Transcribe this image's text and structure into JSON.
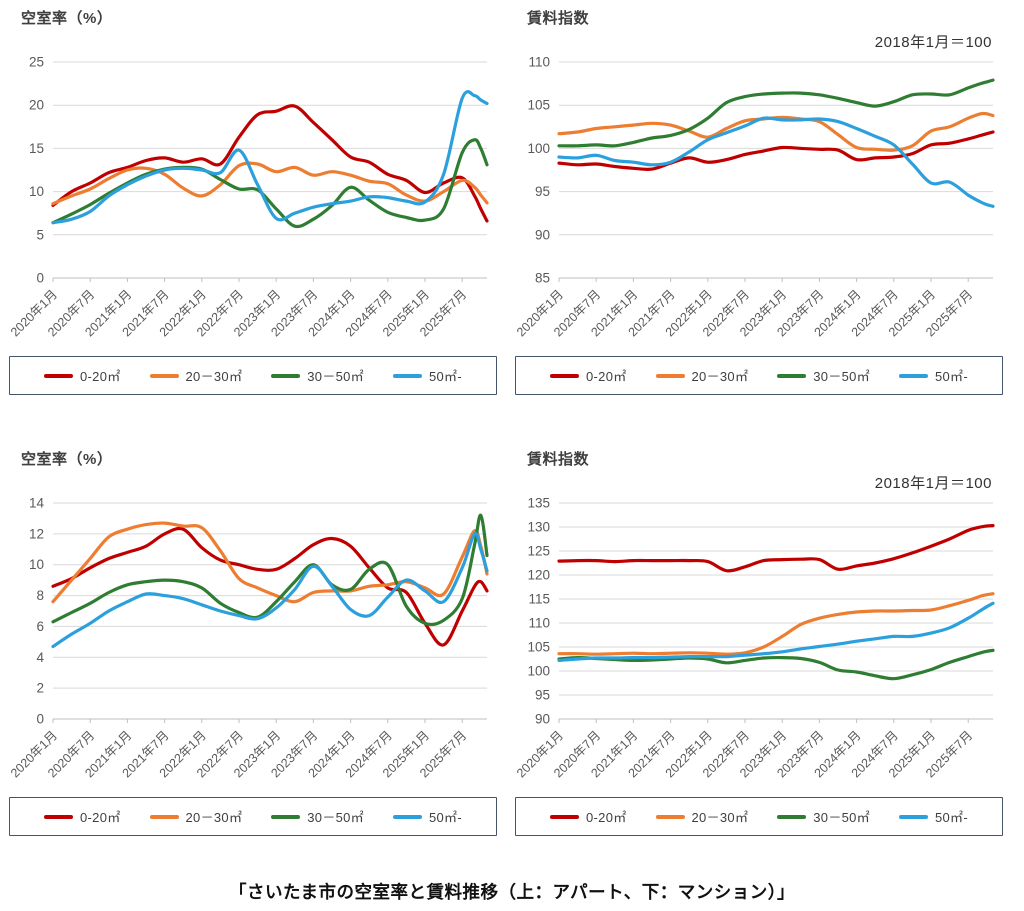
{
  "page": {
    "title": "「さいたま市の空室率と賃料推移（上：アパート、下：マンション）」"
  },
  "colors": {
    "red": "#c00000",
    "orange": "#ed7d31",
    "green": "#2e7d32",
    "blue": "#2ba0dc",
    "grid_line": "#d9d9d9",
    "axis_line": "#bfbfbf",
    "tick_text": "#595959",
    "header_text": "#3f3f3f",
    "legend_border": "#44546a"
  },
  "legend": {
    "items": [
      {
        "label": "0-20㎡",
        "color_key": "red"
      },
      {
        "label": "20－30㎡",
        "color_key": "orange"
      },
      {
        "label": "30－50㎡",
        "color_key": "green"
      },
      {
        "label": "50㎡-",
        "color_key": "blue"
      }
    ]
  },
  "x_axis": {
    "months_total": 70,
    "tick_months": [
      0,
      6,
      12,
      18,
      24,
      30,
      36,
      42,
      48,
      54,
      60,
      66
    ],
    "tick_labels": [
      "2020年1月",
      "2020年7月",
      "2021年1月",
      "2021年7月",
      "2022年1月",
      "2022年7月",
      "2023年1月",
      "2023年7月",
      "2024年1月",
      "2024年7月",
      "2025年1月",
      "2025年7月"
    ]
  },
  "sample_months": [
    0,
    3,
    6,
    9,
    12,
    15,
    18,
    21,
    24,
    27,
    30,
    33,
    36,
    39,
    42,
    45,
    48,
    51,
    54,
    57,
    60,
    63,
    66,
    68,
    69,
    70
  ],
  "chart_data": [
    {
      "type": "line",
      "id": "apartment-vacancy",
      "title": "空室率（%）",
      "subtitle": "",
      "ylim": [
        0,
        25
      ],
      "yticks": [
        0,
        5,
        10,
        15,
        20,
        25
      ],
      "grid": true,
      "legend_position": "bottom",
      "series": [
        {
          "name": "0-20㎡",
          "color_key": "red",
          "values": [
            8.4,
            10.0,
            11.0,
            12.2,
            12.8,
            13.6,
            13.9,
            13.4,
            13.8,
            13.2,
            16.3,
            18.9,
            19.3,
            19.9,
            18.0,
            16.0,
            14.0,
            13.4,
            12.0,
            11.3,
            9.9,
            11.0,
            11.6,
            9.5,
            8.0,
            6.6
          ]
        },
        {
          "name": "20－30㎡",
          "color_key": "orange",
          "values": [
            8.6,
            9.5,
            10.3,
            11.5,
            12.5,
            12.7,
            12.0,
            10.4,
            9.5,
            10.8,
            13.0,
            13.2,
            12.3,
            12.8,
            11.9,
            12.3,
            11.9,
            11.2,
            10.9,
            9.6,
            8.9,
            10.0,
            11.3,
            10.5,
            9.6,
            8.7
          ]
        },
        {
          "name": "30－50㎡",
          "color_key": "green",
          "values": [
            6.4,
            7.4,
            8.5,
            9.8,
            11.0,
            12.0,
            12.6,
            12.8,
            12.6,
            11.4,
            10.3,
            10.2,
            8.0,
            6.0,
            6.8,
            8.4,
            10.5,
            9.0,
            7.6,
            7.0,
            6.7,
            8.0,
            14.5,
            16.0,
            15.0,
            13.1
          ]
        },
        {
          "name": "50㎡-",
          "color_key": "blue",
          "values": [
            6.4,
            6.8,
            7.7,
            9.5,
            10.8,
            11.8,
            12.5,
            12.7,
            12.5,
            12.2,
            14.8,
            10.8,
            6.9,
            7.5,
            8.2,
            8.6,
            8.9,
            9.4,
            9.3,
            8.9,
            8.8,
            12.0,
            20.8,
            21.1,
            20.6,
            20.2
          ]
        }
      ]
    },
    {
      "type": "line",
      "id": "apartment-rent-index",
      "title": "賃料指数",
      "subtitle": "2018年1月＝100",
      "ylim": [
        85,
        110
      ],
      "yticks": [
        85,
        90,
        95,
        100,
        105,
        110
      ],
      "grid": true,
      "legend_position": "bottom",
      "series": [
        {
          "name": "0-20㎡",
          "color_key": "red",
          "values": [
            98.3,
            98.1,
            98.2,
            97.9,
            97.7,
            97.6,
            98.3,
            98.9,
            98.4,
            98.7,
            99.3,
            99.7,
            100.1,
            100.0,
            99.9,
            99.8,
            98.7,
            98.9,
            99.0,
            99.4,
            100.4,
            100.6,
            101.1,
            101.5,
            101.7,
            101.9
          ]
        },
        {
          "name": "20－30㎡",
          "color_key": "orange",
          "values": [
            101.7,
            101.9,
            102.3,
            102.5,
            102.7,
            102.9,
            102.7,
            102.0,
            101.3,
            102.3,
            103.2,
            103.4,
            103.6,
            103.4,
            103.1,
            101.6,
            100.1,
            99.9,
            99.8,
            100.3,
            102.0,
            102.5,
            103.5,
            104.0,
            104.0,
            103.8
          ]
        },
        {
          "name": "30－50㎡",
          "color_key": "green",
          "values": [
            100.3,
            100.3,
            100.4,
            100.3,
            100.7,
            101.2,
            101.5,
            102.2,
            103.5,
            105.3,
            106.0,
            106.3,
            106.4,
            106.4,
            106.2,
            105.8,
            105.3,
            104.9,
            105.4,
            106.2,
            106.3,
            106.2,
            107.0,
            107.5,
            107.7,
            107.9
          ]
        },
        {
          "name": "50㎡-",
          "color_key": "blue",
          "values": [
            99.0,
            98.9,
            99.2,
            98.6,
            98.4,
            98.1,
            98.4,
            99.6,
            101.0,
            101.8,
            102.6,
            103.5,
            103.3,
            103.3,
            103.4,
            103.1,
            102.3,
            101.4,
            100.4,
            98.2,
            96.0,
            96.1,
            94.6,
            93.8,
            93.5,
            93.3
          ]
        }
      ]
    },
    {
      "type": "line",
      "id": "mansion-vacancy",
      "title": "空室率（%）",
      "subtitle": "",
      "ylim": [
        0,
        14
      ],
      "yticks": [
        0,
        2,
        4,
        6,
        8,
        10,
        12,
        14
      ],
      "grid": true,
      "legend_position": "bottom",
      "series": [
        {
          "name": "0-20㎡",
          "color_key": "red",
          "values": [
            8.6,
            9.1,
            9.8,
            10.4,
            10.8,
            11.2,
            12.0,
            12.3,
            11.1,
            10.3,
            10.0,
            9.7,
            9.7,
            10.4,
            11.3,
            11.7,
            11.2,
            9.8,
            8.5,
            8.2,
            6.2,
            4.8,
            7.0,
            8.6,
            8.9,
            8.3
          ]
        },
        {
          "name": "20－30㎡",
          "color_key": "orange",
          "values": [
            7.6,
            9.0,
            10.4,
            11.8,
            12.3,
            12.6,
            12.7,
            12.5,
            12.4,
            10.9,
            9.1,
            8.5,
            8.0,
            7.6,
            8.2,
            8.3,
            8.3,
            8.6,
            8.7,
            8.9,
            8.5,
            8.1,
            10.5,
            12.2,
            11.2,
            9.4
          ]
        },
        {
          "name": "30－50㎡",
          "color_key": "green",
          "values": [
            6.3,
            6.9,
            7.5,
            8.2,
            8.7,
            8.9,
            9.0,
            8.9,
            8.5,
            7.5,
            6.9,
            6.6,
            7.6,
            8.9,
            10.0,
            8.7,
            8.4,
            9.7,
            10.0,
            7.3,
            6.2,
            6.4,
            7.8,
            11.3,
            13.2,
            10.6
          ]
        },
        {
          "name": "50㎡-",
          "color_key": "blue",
          "values": [
            4.7,
            5.5,
            6.2,
            7.0,
            7.6,
            8.1,
            8.0,
            7.8,
            7.4,
            7.0,
            6.7,
            6.5,
            7.2,
            8.4,
            9.9,
            8.6,
            7.1,
            6.7,
            7.9,
            9.0,
            8.3,
            7.6,
            9.8,
            12.0,
            11.0,
            9.6
          ]
        }
      ]
    },
    {
      "type": "line",
      "id": "mansion-rent-index",
      "title": "賃料指数",
      "subtitle": "2018年1月＝100",
      "ylim": [
        90,
        135
      ],
      "yticks": [
        90,
        95,
        100,
        105,
        110,
        115,
        120,
        125,
        130,
        135
      ],
      "grid": true,
      "legend_position": "bottom",
      "series": [
        {
          "name": "0-20㎡",
          "color_key": "red",
          "values": [
            122.9,
            123.0,
            123.0,
            122.8,
            123.0,
            123.0,
            123.0,
            123.0,
            122.8,
            120.9,
            121.7,
            123.0,
            123.2,
            123.3,
            123.2,
            121.2,
            121.9,
            122.5,
            123.4,
            124.6,
            126.0,
            127.5,
            129.3,
            130.0,
            130.2,
            130.3
          ]
        },
        {
          "name": "20－30㎡",
          "color_key": "orange",
          "values": [
            103.6,
            103.6,
            103.5,
            103.6,
            103.7,
            103.6,
            103.7,
            103.8,
            103.7,
            103.5,
            103.8,
            105.0,
            107.2,
            109.7,
            111.0,
            111.8,
            112.3,
            112.5,
            112.5,
            112.6,
            112.7,
            113.6,
            114.7,
            115.6,
            115.9,
            116.1
          ]
        },
        {
          "name": "30－50㎡",
          "color_key": "green",
          "values": [
            102.5,
            102.8,
            102.6,
            102.4,
            102.2,
            102.3,
            102.5,
            102.7,
            102.5,
            101.7,
            102.2,
            102.7,
            102.8,
            102.6,
            101.8,
            100.2,
            99.8,
            99.0,
            98.4,
            99.2,
            100.3,
            101.8,
            103.0,
            103.8,
            104.1,
            104.3
          ]
        },
        {
          "name": "50㎡-",
          "color_key": "blue",
          "values": [
            102.2,
            102.5,
            102.7,
            102.7,
            102.8,
            102.8,
            102.9,
            103.0,
            103.0,
            103.0,
            103.3,
            103.6,
            104.0,
            104.6,
            105.1,
            105.6,
            106.2,
            106.7,
            107.2,
            107.2,
            107.9,
            109.0,
            111.0,
            112.6,
            113.4,
            114.1
          ]
        }
      ]
    }
  ]
}
